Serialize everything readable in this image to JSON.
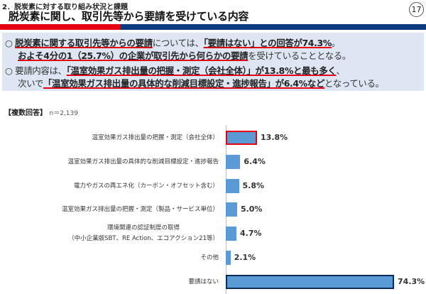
{
  "header": {
    "section": "2．脱炭素に対する取り組み状況と課題",
    "title": "脱炭素に関し、取引先等から要請を受けている内容",
    "page": "17"
  },
  "summary": {
    "line1": {
      "bullet": "○",
      "u1": "脱炭素に関する取引先等からの要請",
      "t1": "については、",
      "u2": "「要請はない」との回答が74.3%",
      "t2": "。"
    },
    "line2": {
      "u1": "およそ4分の1（25.7%）の企業が取引先から何らかの要請",
      "t1": "を受けていることとなる。"
    },
    "line3": {
      "bullet": "○",
      "t1": "要請内容は、",
      "u1": "「温室効果ガス排出量の把握・測定（会社全体）」が13.8%と最も多く",
      "t2": "、"
    },
    "line4": {
      "t1": "次いで",
      "u1": "「温室効果ガス排出量の具体的な削減目標設定・進捗報告」が6.4%など",
      "t2": "となっている。"
    }
  },
  "note": {
    "label": "【複数回答】",
    "n": "n＝2,139"
  },
  "colors": {
    "bar": "#5b9bd5",
    "highlight_red": "#e60012",
    "highlight_navy": "#0b2a5e"
  },
  "chart_data": {
    "type": "bar",
    "orientation": "horizontal",
    "categories": [
      "温室効果ガス排出量の把握・測定（会社全体）",
      "温室効果ガス排出量の具体的な削減目標設定・進捗報告",
      "電力やガスの再エネ化（カーボン・オフセット含む）",
      "温室効果ガス排出量の把握・測定（製品・サービス単位）",
      "環境関連の認証制度の取得\n（中小企業版SBT、RE Action、エコアクション21等）",
      "その他",
      "要請はない"
    ],
    "values": [
      13.8,
      6.4,
      5.8,
      5.0,
      4.7,
      2.1,
      74.3
    ],
    "labels": [
      "13.8%",
      "6.4%",
      "5.8%",
      "5.0%",
      "4.7%",
      "2.1%",
      "74.3%"
    ],
    "highlight": [
      "red",
      "",
      "",
      "",
      "",
      "",
      "navy"
    ],
    "unit": "%",
    "xlim": [
      0,
      74.3
    ],
    "grid": false
  }
}
